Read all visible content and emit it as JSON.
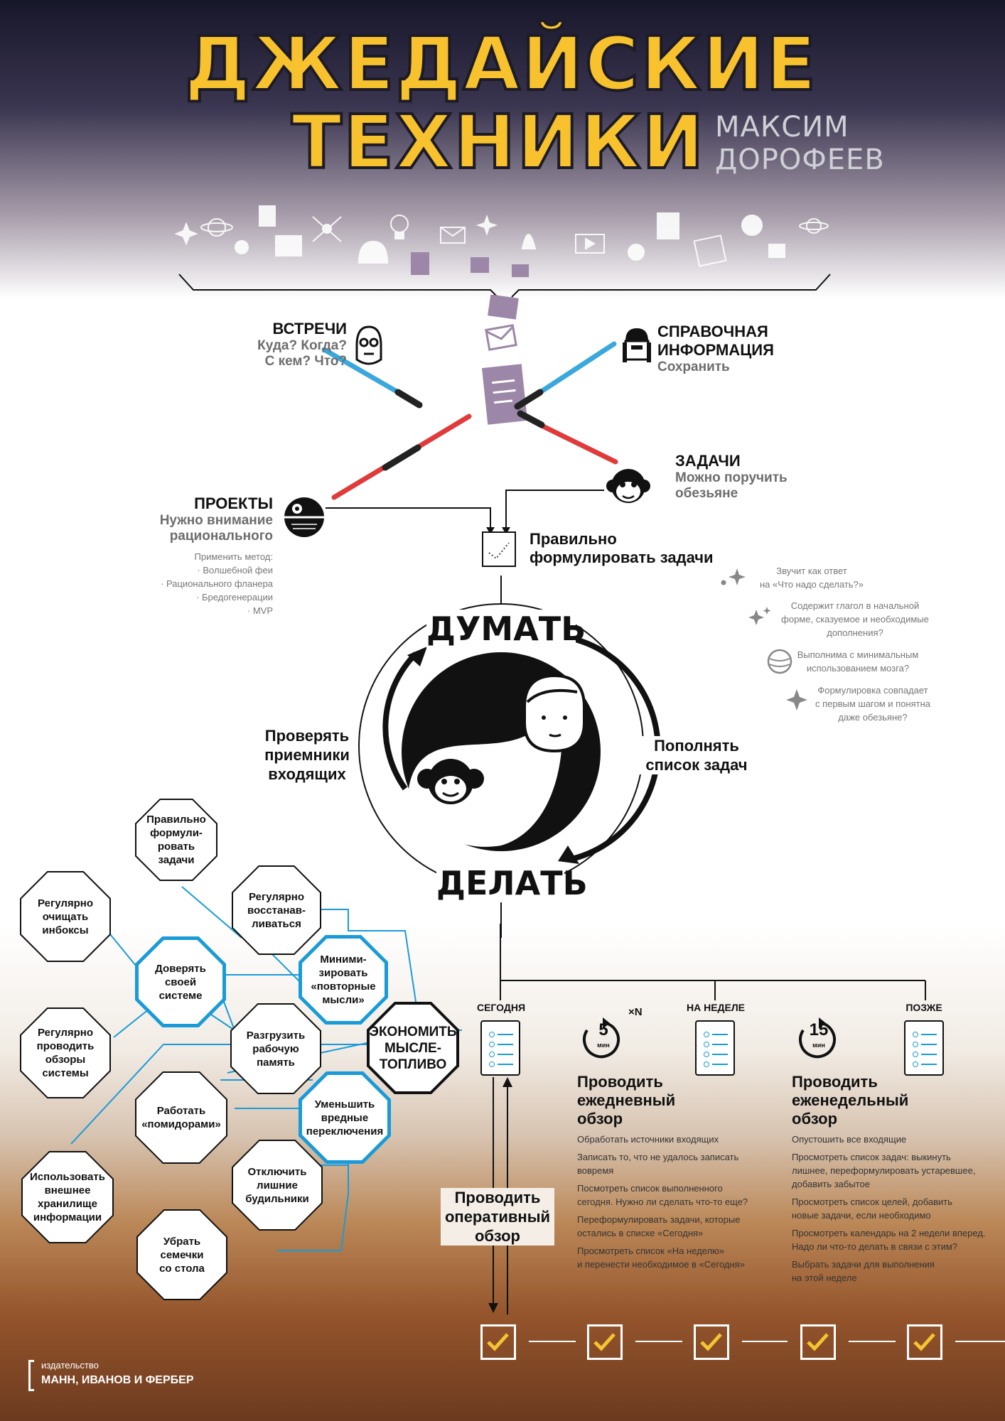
{
  "header": {
    "title_line1": "ДЖЕДАЙСКИЕ",
    "title_line2": "ТЕХНИКИ",
    "author": "МАКСИМ ДОРОФЕЕВ"
  },
  "categories": {
    "meetings": {
      "title": "ВСТРЕЧИ",
      "sub1": "Куда? Когда?",
      "sub2": "С кем? Что?"
    },
    "reference": {
      "title1": "СПРАВОЧНАЯ",
      "title2": "ИНФОРМАЦИЯ",
      "sub": "Сохранить"
    },
    "projects": {
      "title": "ПРОЕКТЫ",
      "sub1": "Нужно внимание",
      "sub2": "рационального",
      "method_intro": "Применить метод:",
      "methods": [
        "· Волшебной феи",
        "· Рационального фланера",
        "· Бредогенерации",
        "· MVP"
      ]
    },
    "tasks": {
      "title": "ЗАДАЧИ",
      "sub1": "Можно поручить",
      "sub2": "обезьяне"
    }
  },
  "formulate": {
    "line1": "Правильно",
    "line2": "формулировать задачи",
    "criteria": [
      [
        "Звучит как ответ",
        "на «Что надо сделать?»"
      ],
      [
        "Содержит глагол в начальной",
        "форме, сказуемое и необходимые",
        "дополнения?"
      ],
      [
        "Выполнима с минимальным",
        "использованием мозга?"
      ],
      [
        "Формулировка совпадает",
        "с первым шагом и понятна",
        "даже обезьяне?"
      ]
    ]
  },
  "cycle": {
    "think": "ДУМАТЬ",
    "do": "ДЕЛАТЬ",
    "left": [
      "Проверять",
      "приемники",
      "входящих"
    ],
    "right": [
      "Пополнять",
      "список задач"
    ]
  },
  "network": {
    "center": [
      "ЭКОНОМИТЬ",
      "МЫСЛЕ-",
      "ТОПЛИВО"
    ],
    "trust": [
      "Доверять",
      "своей",
      "системе"
    ],
    "minimize": [
      "Миними-",
      "зировать",
      "«повторные",
      "мысли»"
    ],
    "reduce": [
      "Уменьшить",
      "вредные",
      "переключения"
    ],
    "unload": [
      "Разгрузить",
      "рабочую",
      "память"
    ],
    "formulate": [
      "Правильно",
      "формули-",
      "ровать",
      "задачи"
    ],
    "recover": [
      "Регулярно",
      "восстанав-",
      "ливаться"
    ],
    "inbox": [
      "Регулярно",
      "очищать",
      "инбоксы"
    ],
    "review": [
      "Регулярно",
      "проводить",
      "обзоры",
      "системы"
    ],
    "pomodoro": [
      "Работать",
      "«помидорами»"
    ],
    "external": [
      "Использовать",
      "внешнее",
      "хранилище",
      "информации"
    ],
    "alarms": [
      "Отключить",
      "лишние",
      "будильники"
    ],
    "seeds": [
      "Убрать",
      "семечки",
      "со стола"
    ]
  },
  "columns": {
    "today": "СЕГОДНЯ",
    "week": "НА НЕДЕЛЕ",
    "later": "ПОЗЖЕ",
    "daily_timer": "5",
    "weekly_timer": "15",
    "timer_unit": "мин",
    "times_n": "×N"
  },
  "operative_review": [
    "Проводить",
    "оперативный",
    "обзор"
  ],
  "daily_review": {
    "title": [
      "Проводить",
      "ежедневный",
      "обзор"
    ],
    "items": [
      [
        "Обработать источники входящих"
      ],
      [
        "Записать то, что не удалось записать",
        "вовремя"
      ],
      [
        "Посмотреть список выполненного",
        "сегодня. Нужно ли сделать что-то еще?"
      ],
      [
        "Переформулировать задачи, которые",
        "остались в списке «Сегодня»"
      ],
      [
        "Просмотреть список «На неделю»",
        "и перенести необходимое в «Сегодня»"
      ]
    ]
  },
  "weekly_review": {
    "title": [
      "Проводить",
      "еженедельный",
      "обзор"
    ],
    "items": [
      [
        "Опустошить все входящие"
      ],
      [
        "Просмотреть список задач: выкинуть",
        "лишнее, переформулировать устаревшее,",
        "добавить забытое"
      ],
      [
        "Просмотреть список целей,  добавить",
        "новые задачи, если необходимо"
      ],
      [
        "Просмотреть календарь на 2 недели вперед.",
        "Надо ли что-то делать в связи с этим?"
      ],
      [
        "Выбрать задачи для выполнения",
        "на этой неделе"
      ]
    ]
  },
  "publisher": {
    "label": "издательство",
    "name": "МАНН, ИВАНОВ И ФЕРБЕР"
  },
  "colors": {
    "accent_yellow": "#f7c22e",
    "blue": "#1a9bd7",
    "red": "#e03a3a",
    "purple": "#9c87a8",
    "gold_check": "#f5c431"
  }
}
